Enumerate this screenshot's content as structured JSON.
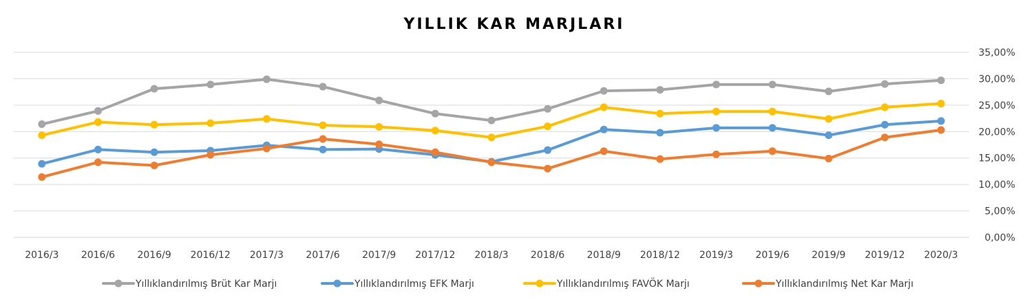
{
  "chart_data": {
    "type": "line",
    "title": "YILLIK KAR MARJLARI",
    "xlabel": "",
    "ylabel": "",
    "categories": [
      "2016/3",
      "2016/6",
      "2016/9",
      "2016/12",
      "2017/3",
      "2017/6",
      "2017/9",
      "2017/12",
      "2018/3",
      "2018/6",
      "2018/9",
      "2018/12",
      "2019/3",
      "2019/6",
      "2019/9",
      "2019/12",
      "2020/3"
    ],
    "y_ticks": [
      "0,00%",
      "5,00%",
      "10,00%",
      "15,00%",
      "20,00%",
      "25,00%",
      "30,00%",
      "35,00%"
    ],
    "ylim": [
      0,
      35
    ],
    "y_axis_position": "right",
    "grid": true,
    "legend": "bottom",
    "series": [
      {
        "name": "Yıllıklandırılmış Brüt Kar Marjı",
        "color": "#A5A5A5",
        "values": [
          21.4,
          23.9,
          28.1,
          28.9,
          29.9,
          28.5,
          25.9,
          23.4,
          22.1,
          24.3,
          27.7,
          27.9,
          28.9,
          28.9,
          27.6,
          29.0,
          29.7
        ]
      },
      {
        "name": "Yıllıklandırılmış EFK Marjı",
        "color": "#5B9BD5",
        "values": [
          13.9,
          16.6,
          16.1,
          16.4,
          17.4,
          16.6,
          16.7,
          15.6,
          14.3,
          16.5,
          20.4,
          19.8,
          20.7,
          20.7,
          19.3,
          21.3,
          22.0
        ]
      },
      {
        "name": "Yıllıklandırılmış FAVÖK Marjı",
        "color": "#FFC000",
        "values": [
          19.3,
          21.8,
          21.3,
          21.6,
          22.4,
          21.2,
          20.9,
          20.2,
          18.9,
          21.0,
          24.6,
          23.4,
          23.8,
          23.8,
          22.4,
          24.6,
          25.3
        ]
      },
      {
        "name": "Yıllıklandırılmış Net Kar Marjı",
        "color": "#ED7D31",
        "values": [
          11.4,
          14.2,
          13.6,
          15.6,
          16.8,
          18.6,
          17.6,
          16.1,
          14.2,
          13.0,
          16.3,
          14.8,
          15.7,
          16.3,
          14.9,
          18.9,
          20.3
        ]
      }
    ]
  }
}
